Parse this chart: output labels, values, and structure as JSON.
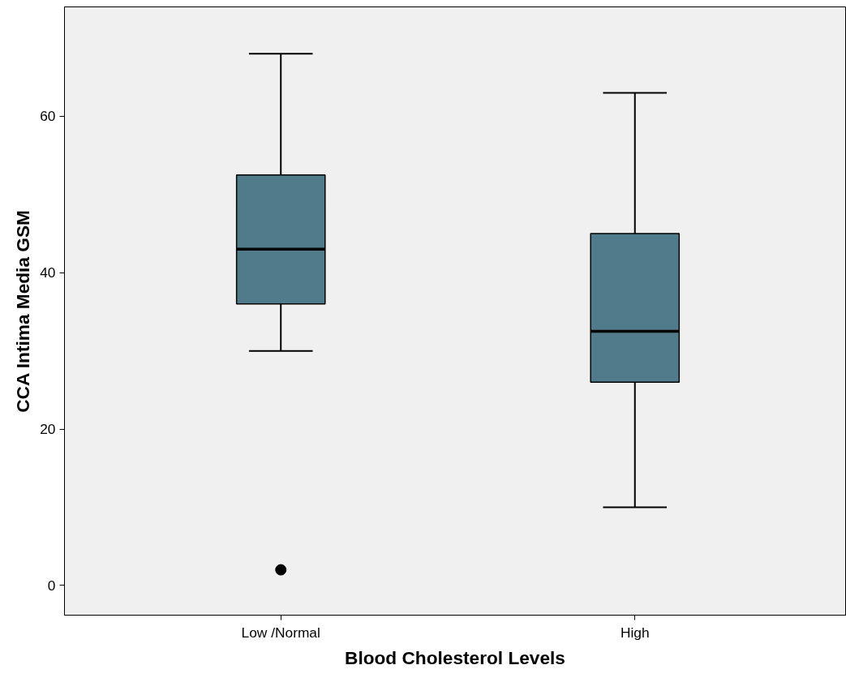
{
  "chart_data": {
    "type": "box",
    "xlabel": "Blood Cholesterol Levels",
    "ylabel": "CCA Intima Media GSM",
    "categories": [
      "Low /Normal",
      "High"
    ],
    "boxes": [
      {
        "low": 30,
        "q1": 36,
        "median": 43,
        "q3": 52.5,
        "high": 68,
        "outliers": [
          2
        ]
      },
      {
        "low": 10,
        "q1": 26,
        "median": 32.5,
        "q3": 45,
        "high": 63
      }
    ],
    "color": "#4f7b8a",
    "ylim": [
      -3.8,
      74
    ],
    "yticks": [
      0,
      20,
      40,
      60
    ],
    "grid": false
  }
}
